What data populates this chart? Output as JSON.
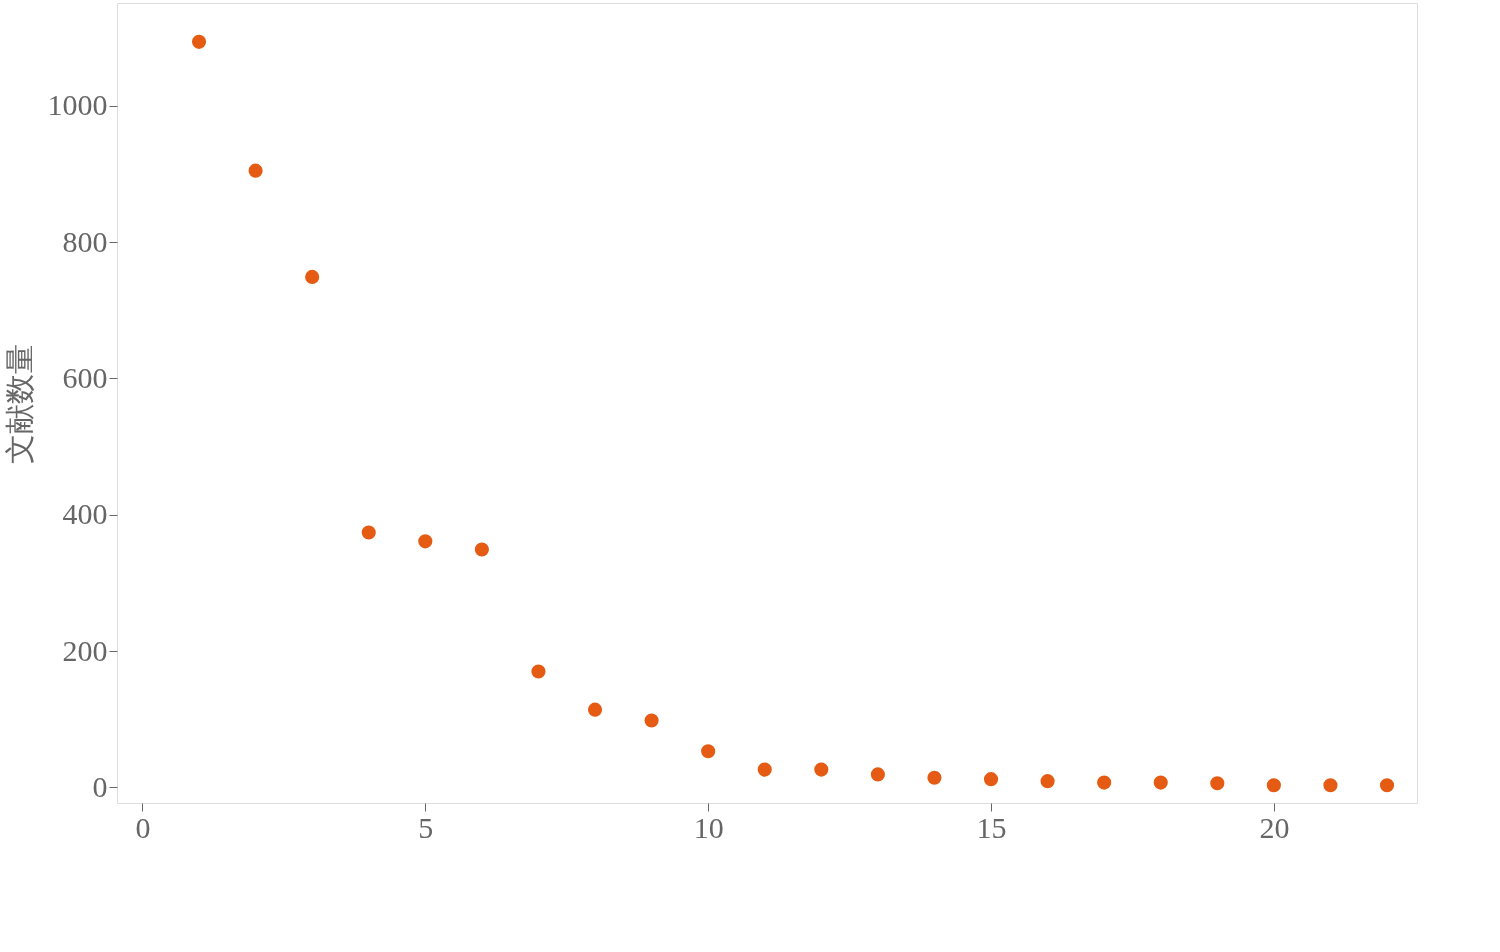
{
  "chart_data": {
    "type": "scatter",
    "ylabel": "文献数量",
    "x": [
      1,
      2,
      3,
      4,
      5,
      6,
      7,
      8,
      9,
      10,
      11,
      12,
      13,
      14,
      15,
      16,
      17,
      18,
      19,
      20,
      21,
      22
    ],
    "series": [
      {
        "color": "#e55b13",
        "values": [
          1094,
          905,
          749,
          374,
          361,
          349,
          170,
          114,
          98,
          53,
          26,
          26,
          19,
          14,
          12,
          9,
          7,
          7,
          6,
          3,
          3,
          3
        ]
      }
    ],
    "xlim": [
      -0.45,
      22.53
    ],
    "ylim": [
      -23,
      1151
    ],
    "xticks": [
      0,
      5,
      10,
      15,
      20
    ],
    "yticks": [
      0,
      200,
      400,
      600,
      800,
      1000
    ],
    "marker": "circle",
    "grid": false,
    "legend": false
  }
}
